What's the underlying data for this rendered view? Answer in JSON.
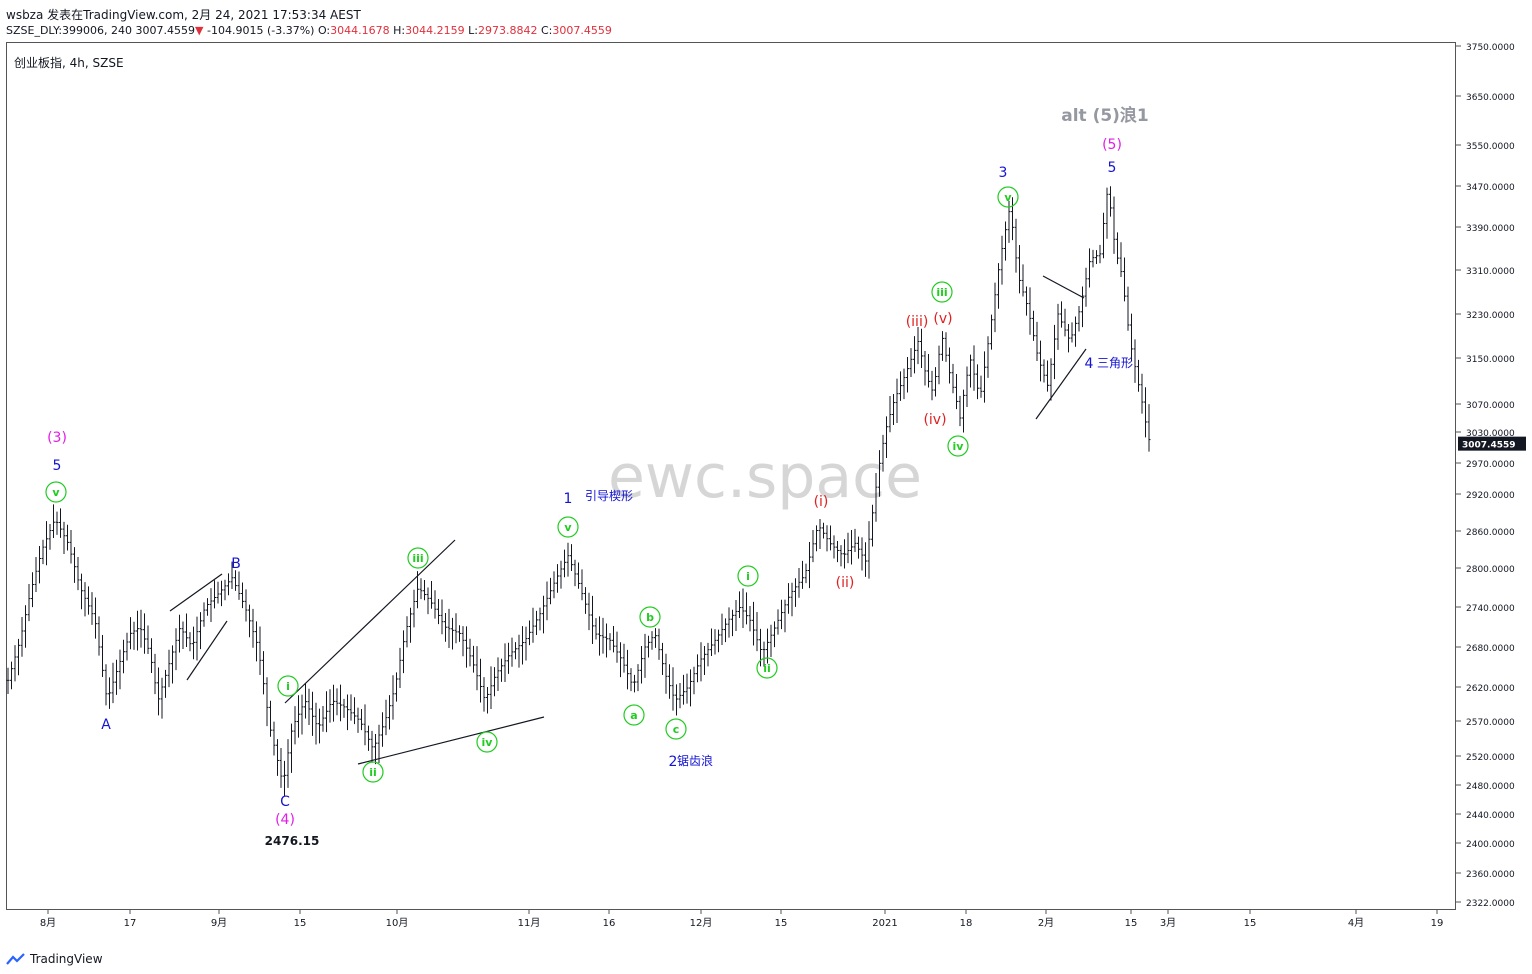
{
  "header": {
    "author": "wsbza",
    "published": "发表在TradingView.com, 2月 24, 2021 17:53:34 AEST",
    "symbol_code": "SZSE_DLY:399006, 240",
    "last": "3007.4559",
    "change": "-104.9015 (-3.37%)",
    "o_label": "O:",
    "o": "3044.1678",
    "h_label": "H:",
    "h": "3044.2159",
    "l_label": "L:",
    "l": "2973.8842",
    "c_label": "C:",
    "c": "3007.4559"
  },
  "symbol_label": "创业板指, 4h, SZSE",
  "watermark": "ewc.space",
  "footer": {
    "brand": "TradingView"
  },
  "colors": {
    "up_price_tag": "#131722",
    "grid": "#ffffff",
    "blue": "#1414d2",
    "magenta": "#e21de6",
    "green": "#22cc22",
    "red": "#e02020",
    "gray": "#9598a1"
  },
  "chart_data": {
    "type": "ohlc",
    "title": "创业板指, 4h, SZSE",
    "ylim": [
      2300,
      3770
    ],
    "y_ticks": [
      "3750.0000",
      "3650.0000",
      "3550.0000",
      "3470.0000",
      "3390.0000",
      "3310.0000",
      "3230.0000",
      "3150.0000",
      "3070.0000",
      "3030.0000",
      "2970.0000",
      "2920.0000",
      "2860.0000",
      "2800.0000",
      "2740.0000",
      "2680.0000",
      "2620.0000",
      "2570.0000",
      "2520.0000",
      "2480.0000",
      "2440.0000",
      "2400.0000",
      "2360.0000",
      "2322.0000"
    ],
    "x_ticks": [
      "8月",
      "17",
      "9月",
      "15",
      "10月",
      "11月",
      "16",
      "12月",
      "15",
      "2021",
      "18",
      "2月",
      "15",
      "3月",
      "15",
      "4月",
      "19"
    ],
    "last_price_label": "3007.4559",
    "low_label": "2476.15",
    "annotations": [
      {
        "text": "(3)",
        "color": "magenta"
      },
      {
        "text": "5",
        "color": "blue"
      },
      {
        "text": "v",
        "color": "green"
      },
      {
        "text": "A",
        "color": "blue"
      },
      {
        "text": "B",
        "color": "blue"
      },
      {
        "text": "C",
        "color": "blue"
      },
      {
        "text": "(4)",
        "color": "magenta"
      },
      {
        "text": "i",
        "color": "green"
      },
      {
        "text": "ii",
        "color": "green"
      },
      {
        "text": "iii",
        "color": "green"
      },
      {
        "text": "iv",
        "color": "green"
      },
      {
        "text": "v",
        "color": "green"
      },
      {
        "text": "1",
        "color": "blue"
      },
      {
        "text": "引导楔形",
        "color": "blue"
      },
      {
        "text": "a",
        "color": "green"
      },
      {
        "text": "b",
        "color": "green"
      },
      {
        "text": "c",
        "color": "green"
      },
      {
        "text": "2",
        "color": "blue"
      },
      {
        "text": "锯齿浪",
        "color": "blue"
      },
      {
        "text": "i",
        "color": "green"
      },
      {
        "text": "ii",
        "color": "green"
      },
      {
        "text": "(i)",
        "color": "red"
      },
      {
        "text": "(ii)",
        "color": "red"
      },
      {
        "text": "(iii)",
        "color": "red"
      },
      {
        "text": "(iv)",
        "color": "red"
      },
      {
        "text": "(v)",
        "color": "red"
      },
      {
        "text": "iii",
        "color": "green"
      },
      {
        "text": "iv",
        "color": "green"
      },
      {
        "text": "v",
        "color": "green"
      },
      {
        "text": "3",
        "color": "blue"
      },
      {
        "text": "4",
        "color": "blue"
      },
      {
        "text": "三角形",
        "color": "blue"
      },
      {
        "text": "5",
        "color": "blue"
      },
      {
        "text": "(5)",
        "color": "magenta"
      },
      {
        "text": "alt (5)浪1",
        "color": "gray"
      }
    ]
  }
}
